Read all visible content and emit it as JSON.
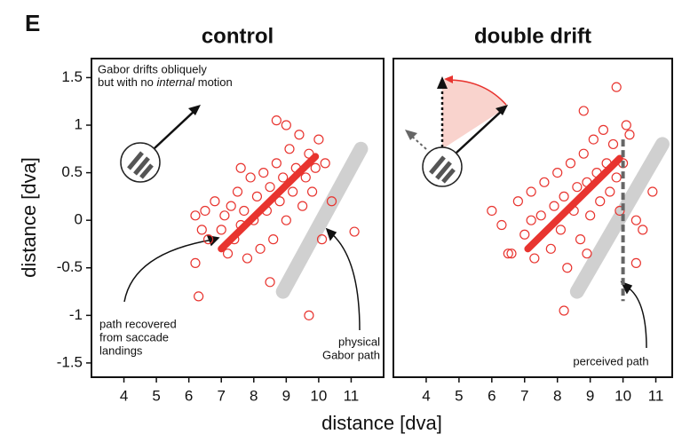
{
  "panel_label": "E",
  "xlabel": "distance [dva]",
  "ylabel": "distance [dva]",
  "chart_data": [
    {
      "type": "scatter",
      "title": "control",
      "color": "#e8342f",
      "xlim": [
        3,
        12
      ],
      "ylim": [
        -1.65,
        1.7
      ],
      "xticks": [
        4,
        5,
        6,
        7,
        8,
        9,
        10,
        11
      ],
      "yticks": [
        -1.5,
        -1,
        -0.5,
        0,
        0.5,
        1,
        1.5
      ],
      "x": [
        6.2,
        6.4,
        6.5,
        6.6,
        6.8,
        7.0,
        7.1,
        7.2,
        7.3,
        7.4,
        7.5,
        7.6,
        7.7,
        7.8,
        7.9,
        8.0,
        8.1,
        8.2,
        8.3,
        8.4,
        8.5,
        8.6,
        8.7,
        8.8,
        8.9,
        9.0,
        9.1,
        9.2,
        9.3,
        9.4,
        9.5,
        9.6,
        9.7,
        9.8,
        9.9,
        10.0,
        10.2,
        10.4,
        8.7,
        9.0,
        6.2,
        6.3,
        9.7,
        11.1,
        8.5,
        7.6,
        10.1
      ],
      "y": [
        0.05,
        -0.1,
        0.1,
        -0.2,
        0.2,
        -0.1,
        0.05,
        -0.35,
        0.15,
        -0.2,
        0.3,
        -0.05,
        0.1,
        -0.4,
        0.45,
        0.0,
        0.25,
        -0.3,
        0.5,
        0.1,
        0.35,
        -0.2,
        0.6,
        0.2,
        0.45,
        0.0,
        0.75,
        0.3,
        0.55,
        0.9,
        0.15,
        0.45,
        0.7,
        0.3,
        0.55,
        0.85,
        0.6,
        0.2,
        1.05,
        1.0,
        -0.45,
        -0.8,
        -1.0,
        -0.12,
        -0.65,
        0.55,
        -0.2
      ],
      "fit": {
        "x": [
          7.0,
          9.9
        ],
        "y": [
          -0.3,
          0.67
        ]
      },
      "physical_path": {
        "x": [
          8.9,
          11.3
        ],
        "y": [
          -0.75,
          0.75
        ]
      },
      "annotations": [
        [
          "Gabor drifts obliquely",
          [
            "but with no ",
            "internal",
            " motion"
          ]
        ],
        [
          "path recovered",
          "from saccade",
          "landings"
        ],
        [
          "physical",
          "Gabor path"
        ]
      ]
    },
    {
      "type": "scatter",
      "title": "double drift",
      "color": "#e8342f",
      "xlim": [
        3,
        11.5
      ],
      "ylim": [
        -1.65,
        1.7
      ],
      "xticks": [
        4,
        5,
        6,
        7,
        8,
        9,
        10,
        11
      ],
      "x": [
        6.0,
        6.3,
        6.6,
        6.8,
        7.0,
        7.2,
        7.3,
        7.5,
        7.6,
        7.8,
        7.9,
        8.0,
        8.1,
        8.2,
        8.3,
        8.4,
        8.5,
        8.6,
        8.7,
        8.8,
        8.9,
        9.0,
        9.1,
        9.2,
        9.3,
        9.4,
        9.5,
        9.6,
        9.7,
        9.8,
        9.9,
        10.0,
        10.2,
        10.4,
        10.6,
        10.9,
        8.8,
        9.8,
        8.2,
        10.4,
        6.5,
        7.2,
        8.9,
        10.1
      ],
      "y": [
        0.1,
        -0.05,
        -0.35,
        0.2,
        -0.15,
        0.3,
        -0.4,
        0.05,
        0.4,
        -0.3,
        0.15,
        0.5,
        -0.1,
        0.25,
        -0.5,
        0.6,
        0.1,
        0.35,
        -0.2,
        0.7,
        0.4,
        0.05,
        0.85,
        0.5,
        0.2,
        0.95,
        0.6,
        0.3,
        0.8,
        0.45,
        0.1,
        0.6,
        0.9,
        0.0,
        -0.1,
        0.3,
        1.15,
        1.4,
        -0.95,
        -0.45,
        -0.35,
        0.0,
        -0.35,
        1.0
      ],
      "fit": {
        "x": [
          7.1,
          9.9
        ],
        "y": [
          -0.3,
          0.65
        ]
      },
      "physical_path": {
        "x": [
          8.6,
          11.2
        ],
        "y": [
          -0.75,
          0.8
        ]
      },
      "perceived_path": {
        "x": [
          10,
          10
        ],
        "y": [
          0.85,
          -0.85
        ]
      },
      "annotations": [
        [
          "perceived path"
        ]
      ]
    }
  ]
}
